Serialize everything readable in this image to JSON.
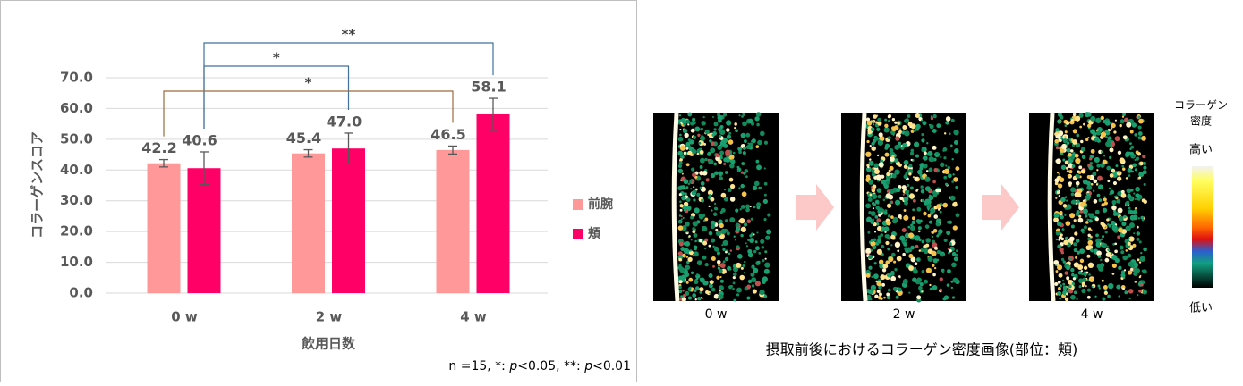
{
  "chart_data": {
    "type": "bar",
    "y_label": "コラーゲンスコア",
    "x_label": "飲用日数",
    "note": [
      "n =15, *: ",
      "p",
      "<0.05, **: ",
      "p",
      "<0.01"
    ],
    "categories": [
      "0 w",
      "2 w",
      "4 w"
    ],
    "series": [
      {
        "name": "前腕",
        "color": "#ff9999",
        "values": [
          42.2,
          45.4,
          46.5
        ],
        "errors": [
          1.2,
          1.2,
          1.3
        ],
        "value_labels": [
          "42.2",
          "45.4",
          "46.5"
        ]
      },
      {
        "name": "頬",
        "color": "#ff0066",
        "values": [
          40.6,
          47.0,
          58.1
        ],
        "errors": [
          5.3,
          5.0,
          5.2
        ],
        "value_labels": [
          "40.6",
          "47.0",
          "58.1"
        ]
      }
    ],
    "ylim": [
      0,
      70
    ],
    "yticks": [
      {
        "value": 0,
        "label": "0.0"
      },
      {
        "value": 10,
        "label": "10.0"
      },
      {
        "value": 20,
        "label": "20.0"
      },
      {
        "value": 30,
        "label": "30.0"
      },
      {
        "value": 40,
        "label": "40.0"
      },
      {
        "value": 50,
        "label": "50.0"
      },
      {
        "value": 60,
        "label": "60.0"
      },
      {
        "value": 70,
        "label": "70.0"
      }
    ],
    "grid": true,
    "legend": "right",
    "significance": [
      {
        "label": "**",
        "series": "頬",
        "from": "0 w",
        "to": "4 w",
        "color": "#41719c"
      },
      {
        "label": "*",
        "series": "頬",
        "from": "0 w",
        "to": "2 w",
        "color": "#41719c"
      },
      {
        "label": "*",
        "series": "前腕",
        "from": "0 w",
        "to": "4 w",
        "color": "#9c6a3c"
      }
    ]
  },
  "images": {
    "labels": [
      "0 w",
      "2 w",
      "4 w"
    ],
    "caption": "摂取前後におけるコラーゲン密度画像(部位：頬)",
    "colorbar": {
      "title": [
        "コラーゲン",
        "密度"
      ],
      "high": "高い",
      "low": "低い"
    }
  }
}
